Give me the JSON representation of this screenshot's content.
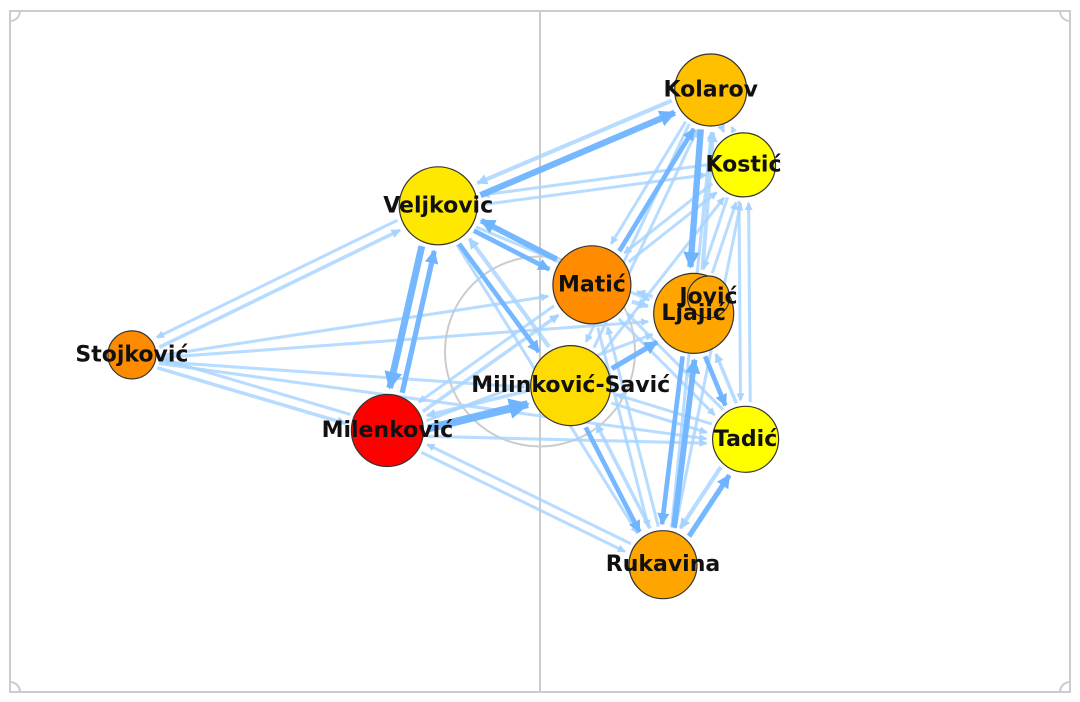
{
  "chart_data": {
    "type": "passing-network",
    "players": [
      {
        "id": "kolarov",
        "name": "Kolarov",
        "x": 66.1,
        "y": 88.4,
        "size": 36,
        "color": "#FFC000"
      },
      {
        "id": "kostic",
        "name": "Kostić",
        "x": 69.2,
        "y": 77.4,
        "size": 32,
        "color": "#FFFF00"
      },
      {
        "id": "veljkovic",
        "name": "Veljkovic",
        "x": 40.4,
        "y": 71.4,
        "size": 39,
        "color": "#FFE800"
      },
      {
        "id": "matic",
        "name": "Matić",
        "x": 54.9,
        "y": 59.8,
        "size": 39,
        "color": "#FF8C00"
      },
      {
        "id": "ljajic",
        "name": "Ljajić",
        "x": 64.5,
        "y": 55.6,
        "size": 40,
        "color": "#FFA500"
      },
      {
        "id": "jovic",
        "name": "Jović",
        "x": 65.9,
        "y": 58.0,
        "size": 21,
        "color": "#FFA500"
      },
      {
        "id": "stojkovic",
        "name": "Stojković",
        "x": 11.5,
        "y": 49.5,
        "size": 24,
        "color": "#FF8C00"
      },
      {
        "id": "milinkovic",
        "name": "Milinković-Savić",
        "x": 52.9,
        "y": 45.0,
        "size": 40,
        "color": "#FFDC00"
      },
      {
        "id": "milenkovic",
        "name": "Milenković",
        "x": 35.6,
        "y": 38.4,
        "size": 36,
        "color": "#FF0000"
      },
      {
        "id": "tadic",
        "name": "Tadić",
        "x": 69.4,
        "y": 37.1,
        "size": 33,
        "color": "#FFFF00"
      },
      {
        "id": "rukavina",
        "name": "Rukavina",
        "x": 61.6,
        "y": 18.7,
        "size": 34,
        "color": "#FFA500"
      }
    ],
    "passes": [
      {
        "from": "veljkovic",
        "to": "kolarov",
        "count": 9
      },
      {
        "from": "kolarov",
        "to": "veljkovic",
        "count": 5
      },
      {
        "from": "veljkovic",
        "to": "milenkovic",
        "count": 10
      },
      {
        "from": "milenkovic",
        "to": "veljkovic",
        "count": 7
      },
      {
        "from": "milenkovic",
        "to": "milinkovic",
        "count": 12
      },
      {
        "from": "milinkovic",
        "to": "milenkovic",
        "count": 4
      },
      {
        "from": "matic",
        "to": "veljkovic",
        "count": 8
      },
      {
        "from": "veljkovic",
        "to": "matic",
        "count": 6
      },
      {
        "from": "kolarov",
        "to": "ljajic",
        "count": 9
      },
      {
        "from": "ljajic",
        "to": "kolarov",
        "count": 5
      },
      {
        "from": "matic",
        "to": "kolarov",
        "count": 6
      },
      {
        "from": "kolarov",
        "to": "matic",
        "count": 3
      },
      {
        "from": "rukavina",
        "to": "ljajic",
        "count": 8
      },
      {
        "from": "ljajic",
        "to": "rukavina",
        "count": 6
      },
      {
        "from": "rukavina",
        "to": "tadic",
        "count": 7
      },
      {
        "from": "tadic",
        "to": "rukavina",
        "count": 5
      },
      {
        "from": "milinkovic",
        "to": "rukavina",
        "count": 6
      },
      {
        "from": "rukavina",
        "to": "milinkovic",
        "count": 4
      },
      {
        "from": "milinkovic",
        "to": "ljajic",
        "count": 7
      },
      {
        "from": "stojkovic",
        "to": "veljkovic",
        "count": 4
      },
      {
        "from": "veljkovic",
        "to": "stojkovic",
        "count": 3
      },
      {
        "from": "stojkovic",
        "to": "milenkovic",
        "count": 4
      },
      {
        "from": "milenkovic",
        "to": "stojkovic",
        "count": 3
      },
      {
        "from": "veljkovic",
        "to": "milinkovic",
        "count": 6
      },
      {
        "from": "milinkovic",
        "to": "veljkovic",
        "count": 5
      },
      {
        "from": "ljajic",
        "to": "tadic",
        "count": 6
      },
      {
        "from": "tadic",
        "to": "ljajic",
        "count": 4
      },
      {
        "from": "kostic",
        "to": "veljkovic",
        "count": 3
      },
      {
        "from": "veljkovic",
        "to": "kostic",
        "count": 3
      },
      {
        "from": "kostic",
        "to": "tadic",
        "count": 3
      },
      {
        "from": "tadic",
        "to": "kostic",
        "count": 3
      },
      {
        "from": "kolarov",
        "to": "kostic",
        "count": 3
      },
      {
        "from": "kostic",
        "to": "kolarov",
        "count": 2
      },
      {
        "from": "matic",
        "to": "ljajic",
        "count": 5
      },
      {
        "from": "ljajic",
        "to": "matic",
        "count": 4
      },
      {
        "from": "matic",
        "to": "milenkovic",
        "count": 3
      },
      {
        "from": "milenkovic",
        "to": "matic",
        "count": 4
      },
      {
        "from": "matic",
        "to": "rukavina",
        "count": 3
      },
      {
        "from": "rukavina",
        "to": "matic",
        "count": 3
      },
      {
        "from": "matic",
        "to": "tadic",
        "count": 3
      },
      {
        "from": "tadic",
        "to": "matic",
        "count": 3
      },
      {
        "from": "milinkovic",
        "to": "tadic",
        "count": 3
      },
      {
        "from": "tadic",
        "to": "milinkovic",
        "count": 3
      },
      {
        "from": "milinkovic",
        "to": "kolarov",
        "count": 3
      },
      {
        "from": "kolarov",
        "to": "milinkovic",
        "count": 3
      },
      {
        "from": "milinkovic",
        "to": "kostic",
        "count": 3
      },
      {
        "from": "kostic",
        "to": "ljajic",
        "count": 3
      },
      {
        "from": "ljajic",
        "to": "kostic",
        "count": 3
      },
      {
        "from": "milenkovic",
        "to": "rukavina",
        "count": 3
      },
      {
        "from": "rukavina",
        "to": "milenkovic",
        "count": 3
      },
      {
        "from": "milenkovic",
        "to": "tadic",
        "count": 3
      },
      {
        "from": "milenkovic",
        "to": "ljajic",
        "count": 3
      },
      {
        "from": "stojkovic",
        "to": "milinkovic",
        "count": 3
      },
      {
        "from": "stojkovic",
        "to": "matic",
        "count": 3
      },
      {
        "from": "stojkovic",
        "to": "ljajic",
        "count": 3
      },
      {
        "from": "stojkovic",
        "to": "tadic",
        "count": 3
      },
      {
        "from": "kostic",
        "to": "matic",
        "count": 3
      },
      {
        "from": "matic",
        "to": "kostic",
        "count": 3
      },
      {
        "from": "veljkovic",
        "to": "ljajic",
        "count": 3
      },
      {
        "from": "veljkovic",
        "to": "rukavina",
        "count": 3
      },
      {
        "from": "rukavina",
        "to": "kolarov",
        "count": 3
      },
      {
        "from": "rukavina",
        "to": "kostic",
        "count": 3
      }
    ]
  }
}
